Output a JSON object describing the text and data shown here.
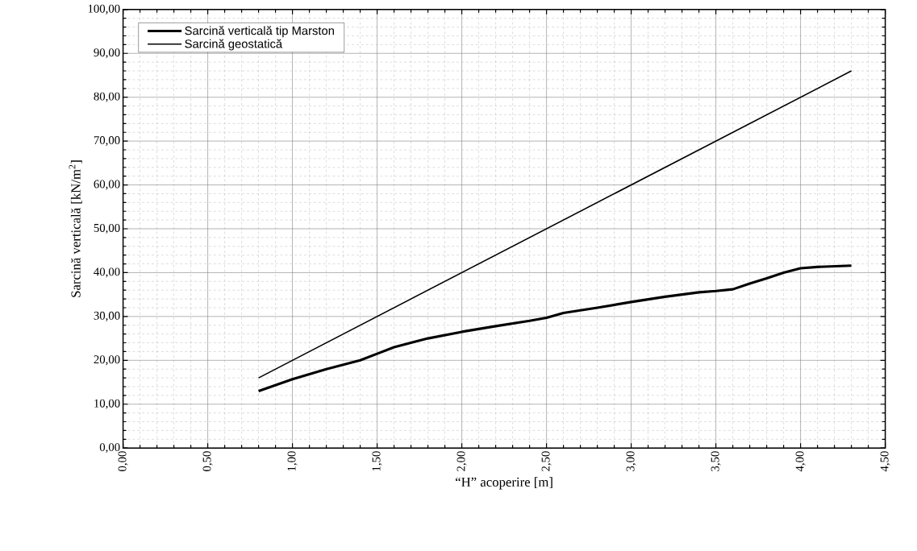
{
  "chart_data": {
    "type": "line",
    "xlabel": "“H” acoperire [m]",
    "ylabel": "Sarcină verticală [kN/m$^{2}$]",
    "xlim": [
      0,
      4.5
    ],
    "ylim": [
      0,
      100
    ],
    "xticks": [
      {
        "value": 0,
        "label": "0,00"
      },
      {
        "value": 0.5,
        "label": "0,50"
      },
      {
        "value": 1,
        "label": "1,00"
      },
      {
        "value": 1.5,
        "label": "1,50"
      },
      {
        "value": 2,
        "label": "2,00"
      },
      {
        "value": 2.5,
        "label": "2,50"
      },
      {
        "value": 3,
        "label": "3,00"
      },
      {
        "value": 3.5,
        "label": "3,50"
      },
      {
        "value": 4,
        "label": "4,00"
      },
      {
        "value": 4.5,
        "label": "4,50"
      }
    ],
    "yticks": [
      {
        "value": 0,
        "label": "0,00"
      },
      {
        "value": 10,
        "label": "10,00"
      },
      {
        "value": 20,
        "label": "20,00"
      },
      {
        "value": 30,
        "label": "30,00"
      },
      {
        "value": 40,
        "label": "40,00"
      },
      {
        "value": 50,
        "label": "50,00"
      },
      {
        "value": 60,
        "label": "60,00"
      },
      {
        "value": 70,
        "label": "70,00"
      },
      {
        "value": 80,
        "label": "80,00"
      },
      {
        "value": 90,
        "label": "90,00"
      },
      {
        "value": 100,
        "label": "100,00"
      }
    ],
    "grid": true,
    "legend": "top left",
    "marker": "none",
    "line_style": "solid",
    "series": [
      {
        "name": "Sarcină verticală tip Marston",
        "color": "#000000",
        "x": [
          0.8,
          1.0,
          1.2,
          1.4,
          1.5,
          1.6,
          1.8,
          2.0,
          2.2,
          2.4,
          2.5,
          2.6,
          2.8,
          3.0,
          3.2,
          3.4,
          3.5,
          3.6,
          3.7,
          3.8,
          3.9,
          4.0,
          4.1,
          4.3
        ],
        "values": [
          13,
          15.7,
          18,
          20,
          21.5,
          23,
          25,
          26.5,
          27.8,
          29,
          29.7,
          30.8,
          32,
          33.3,
          34.5,
          35.5,
          35.8,
          36.2,
          37.5,
          38.7,
          40,
          41,
          41.3,
          41.6
        ]
      },
      {
        "name": "Sarcină geostatică",
        "color": "#000000",
        "x": [
          0.8,
          4.3
        ],
        "values": [
          16,
          86
        ]
      }
    ]
  }
}
